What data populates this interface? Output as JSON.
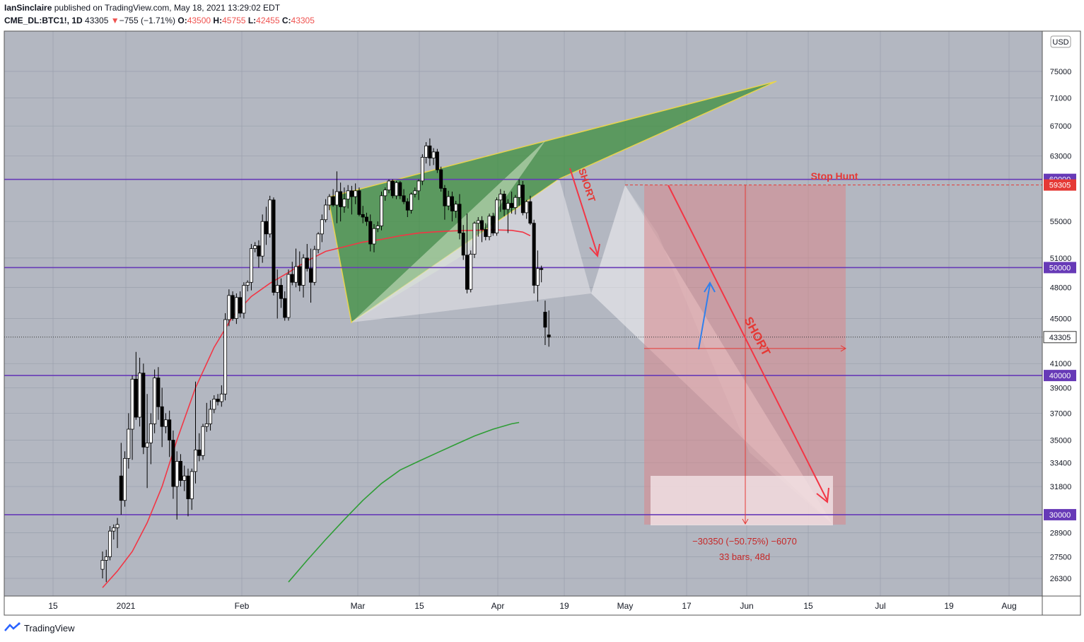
{
  "header": {
    "author": "IanSinclaire",
    "published_text": "published on TradingView.com, May 18, 2021 13:29:02 EDT",
    "symbol": "CME_DL:BTC1!, 1D",
    "last": "43305",
    "change_arrow": "▼",
    "change": "−755 (−1.71%)",
    "o_label": "O:",
    "o_value": "43500",
    "h_label": "H:",
    "h_value": "45755",
    "l_label": "L:",
    "l_value": "42455",
    "c_label": "C:",
    "c_value": "43305"
  },
  "footer": {
    "brand": "TradingView"
  },
  "colors": {
    "plot_bg": "#b3b7c1",
    "up": "#ffffff",
    "down": "#000000",
    "level_line": "#673ab7",
    "ma_fast": "#f23645",
    "ma_slow": "#2e9d35",
    "pattern_green": "#3e8f3e",
    "short_arrow": "#f23645",
    "range_box": "#d9888c",
    "projection_arrow": "#2f80ed"
  },
  "chart_data": {
    "type": "candlestick",
    "currency": "USD",
    "x_labels": [
      "15",
      "2021",
      "Feb",
      "Mar",
      "15",
      "Apr",
      "19",
      "May",
      "17",
      "Jun",
      "15",
      "Jul",
      "19",
      "Aug"
    ],
    "y_ticks": [
      "75000",
      "71000",
      "67000",
      "63000",
      "55000",
      "51000",
      "48000",
      "45000",
      "41000",
      "39000",
      "37000",
      "35000",
      "33400",
      "31800",
      "28900",
      "27500",
      "26300"
    ],
    "horizontal_levels": [
      {
        "value": 60000,
        "label": "60000"
      },
      {
        "value": 50000,
        "label": "50000"
      },
      {
        "value": 40000,
        "label": "40000"
      },
      {
        "value": 30000,
        "label": "30000"
      }
    ],
    "last_price": {
      "value": 43305,
      "label": "43305"
    },
    "stop_level": {
      "value": 59305,
      "label": "59305"
    },
    "annotations": {
      "stop_hunt": "Stop Hunt",
      "short_1": "SHORT",
      "short_2": "SHORT",
      "measure_1": "−30350 (−50.75%) −6070",
      "measure_2": "33 bars, 48d"
    },
    "candles": [
      {
        "o": 26800,
        "h": 27800,
        "l": 26300,
        "c": 27300
      },
      {
        "o": 27300,
        "h": 27900,
        "l": 26100,
        "c": 27500
      },
      {
        "o": 27500,
        "h": 29300,
        "l": 27300,
        "c": 29000
      },
      {
        "o": 29000,
        "h": 29400,
        "l": 28500,
        "c": 29200
      },
      {
        "o": 29200,
        "h": 29800,
        "l": 28000,
        "c": 29400
      },
      {
        "o": 32500,
        "h": 34800,
        "l": 30000,
        "c": 30900
      },
      {
        "o": 30900,
        "h": 34200,
        "l": 30500,
        "c": 33700
      },
      {
        "o": 33700,
        "h": 37000,
        "l": 33000,
        "c": 35800
      },
      {
        "o": 35800,
        "h": 40000,
        "l": 33600,
        "c": 39700
      },
      {
        "o": 39700,
        "h": 42000,
        "l": 36500,
        "c": 36700
      },
      {
        "o": 36700,
        "h": 41500,
        "l": 36000,
        "c": 40200
      },
      {
        "o": 40200,
        "h": 41000,
        "l": 34000,
        "c": 34500
      },
      {
        "o": 34500,
        "h": 38500,
        "l": 31700,
        "c": 34800
      },
      {
        "o": 34800,
        "h": 37000,
        "l": 33300,
        "c": 36200
      },
      {
        "o": 36200,
        "h": 40500,
        "l": 35500,
        "c": 39800
      },
      {
        "o": 39800,
        "h": 40700,
        "l": 36500,
        "c": 37500
      },
      {
        "o": 37500,
        "h": 39000,
        "l": 34500,
        "c": 36000
      },
      {
        "o": 36000,
        "h": 37000,
        "l": 35500,
        "c": 36500
      },
      {
        "o": 36500,
        "h": 37200,
        "l": 33800,
        "c": 35000
      },
      {
        "o": 35000,
        "h": 35700,
        "l": 31000,
        "c": 31800
      },
      {
        "o": 31800,
        "h": 34200,
        "l": 29700,
        "c": 33500
      },
      {
        "o": 33500,
        "h": 34000,
        "l": 31800,
        "c": 32200
      },
      {
        "o": 32200,
        "h": 33200,
        "l": 31500,
        "c": 32500
      },
      {
        "o": 32500,
        "h": 33000,
        "l": 29900,
        "c": 31000
      },
      {
        "o": 31000,
        "h": 33000,
        "l": 30300,
        "c": 32800
      },
      {
        "o": 32800,
        "h": 39500,
        "l": 32000,
        "c": 34300
      },
      {
        "o": 34300,
        "h": 35500,
        "l": 33500,
        "c": 33900
      },
      {
        "o": 33900,
        "h": 36200,
        "l": 33600,
        "c": 36000
      },
      {
        "o": 36000,
        "h": 37800,
        "l": 35600,
        "c": 36200
      },
      {
        "o": 36200,
        "h": 38000,
        "l": 35700,
        "c": 37300
      },
      {
        "o": 37300,
        "h": 38400,
        "l": 37000,
        "c": 38100
      },
      {
        "o": 38100,
        "h": 38500,
        "l": 37600,
        "c": 37900
      },
      {
        "o": 37900,
        "h": 39200,
        "l": 37500,
        "c": 38500
      },
      {
        "o": 38500,
        "h": 45500,
        "l": 38000,
        "c": 44900
      },
      {
        "o": 44900,
        "h": 47800,
        "l": 44300,
        "c": 47200
      },
      {
        "o": 47200,
        "h": 47600,
        "l": 44800,
        "c": 45000
      },
      {
        "o": 45000,
        "h": 47400,
        "l": 44500,
        "c": 47000
      },
      {
        "o": 47000,
        "h": 47600,
        "l": 45100,
        "c": 45500
      },
      {
        "o": 45500,
        "h": 48500,
        "l": 45000,
        "c": 48200
      },
      {
        "o": 48200,
        "h": 48700,
        "l": 47600,
        "c": 48500
      },
      {
        "o": 48500,
        "h": 52500,
        "l": 47700,
        "c": 52000
      },
      {
        "o": 52000,
        "h": 52700,
        "l": 51600,
        "c": 52300
      },
      {
        "o": 52300,
        "h": 52900,
        "l": 50000,
        "c": 51200
      },
      {
        "o": 51200,
        "h": 55800,
        "l": 50500,
        "c": 55000
      },
      {
        "o": 55000,
        "h": 56700,
        "l": 52400,
        "c": 53600
      },
      {
        "o": 53600,
        "h": 58000,
        "l": 53200,
        "c": 57500
      },
      {
        "o": 57500,
        "h": 57800,
        "l": 47200,
        "c": 47500
      },
      {
        "o": 47500,
        "h": 49800,
        "l": 45000,
        "c": 48200
      },
      {
        "o": 48200,
        "h": 48900,
        "l": 46000,
        "c": 46900
      },
      {
        "o": 46900,
        "h": 47600,
        "l": 44800,
        "c": 45100
      },
      {
        "o": 45100,
        "h": 49800,
        "l": 44800,
        "c": 49300
      },
      {
        "o": 49300,
        "h": 50600,
        "l": 48200,
        "c": 48500
      },
      {
        "o": 48500,
        "h": 52000,
        "l": 48000,
        "c": 50100
      },
      {
        "o": 50100,
        "h": 51700,
        "l": 47600,
        "c": 48200
      },
      {
        "o": 48200,
        "h": 51400,
        "l": 47000,
        "c": 51000
      },
      {
        "o": 51000,
        "h": 52500,
        "l": 49600,
        "c": 49900
      },
      {
        "o": 49900,
        "h": 52000,
        "l": 46500,
        "c": 48500
      },
      {
        "o": 48500,
        "h": 52300,
        "l": 48200,
        "c": 51900
      },
      {
        "o": 51900,
        "h": 53800,
        "l": 51500,
        "c": 53600
      },
      {
        "o": 53600,
        "h": 55800,
        "l": 52700,
        "c": 55200
      },
      {
        "o": 55200,
        "h": 57600,
        "l": 54900,
        "c": 56900
      },
      {
        "o": 56900,
        "h": 58200,
        "l": 56300,
        "c": 57900
      },
      {
        "o": 57900,
        "h": 58800,
        "l": 56700,
        "c": 56900
      },
      {
        "o": 56900,
        "h": 61000,
        "l": 54800,
        "c": 58500
      },
      {
        "o": 58500,
        "h": 59600,
        "l": 55000,
        "c": 56700
      },
      {
        "o": 56700,
        "h": 59000,
        "l": 56000,
        "c": 57600
      },
      {
        "o": 57600,
        "h": 59300,
        "l": 56500,
        "c": 58600
      },
      {
        "o": 58600,
        "h": 59200,
        "l": 55800,
        "c": 57900
      },
      {
        "o": 57900,
        "h": 59500,
        "l": 57000,
        "c": 58600
      },
      {
        "o": 58600,
        "h": 59000,
        "l": 55600,
        "c": 55800
      },
      {
        "o": 55800,
        "h": 56800,
        "l": 54800,
        "c": 55500
      },
      {
        "o": 55500,
        "h": 56000,
        "l": 54500,
        "c": 55000
      },
      {
        "o": 55000,
        "h": 55800,
        "l": 51700,
        "c": 52500
      },
      {
        "o": 52500,
        "h": 54700,
        "l": 51600,
        "c": 54200
      },
      {
        "o": 54200,
        "h": 55000,
        "l": 53800,
        "c": 54500
      },
      {
        "o": 54500,
        "h": 58500,
        "l": 54000,
        "c": 58000
      },
      {
        "o": 58000,
        "h": 59000,
        "l": 57400,
        "c": 58700
      },
      {
        "o": 58700,
        "h": 60000,
        "l": 58300,
        "c": 59800
      },
      {
        "o": 59800,
        "h": 60000,
        "l": 57700,
        "c": 58000
      },
      {
        "o": 58000,
        "h": 59800,
        "l": 57600,
        "c": 59600
      },
      {
        "o": 59600,
        "h": 59800,
        "l": 57600,
        "c": 58000
      },
      {
        "o": 58000,
        "h": 58800,
        "l": 57000,
        "c": 57300
      },
      {
        "o": 57300,
        "h": 57700,
        "l": 55500,
        "c": 56300
      },
      {
        "o": 56300,
        "h": 58400,
        "l": 55900,
        "c": 58200
      },
      {
        "o": 58200,
        "h": 59000,
        "l": 57800,
        "c": 58600
      },
      {
        "o": 58600,
        "h": 60000,
        "l": 57500,
        "c": 59800
      },
      {
        "o": 59800,
        "h": 63200,
        "l": 59300,
        "c": 62800
      },
      {
        "o": 62800,
        "h": 64800,
        "l": 62000,
        "c": 64300
      },
      {
        "o": 64300,
        "h": 65300,
        "l": 61700,
        "c": 62700
      },
      {
        "o": 62700,
        "h": 64000,
        "l": 61800,
        "c": 63500
      },
      {
        "o": 63500,
        "h": 63900,
        "l": 60800,
        "c": 61200
      },
      {
        "o": 61200,
        "h": 61600,
        "l": 58500,
        "c": 58900
      },
      {
        "o": 58900,
        "h": 59300,
        "l": 55200,
        "c": 56800
      },
      {
        "o": 56800,
        "h": 58600,
        "l": 56300,
        "c": 57900
      },
      {
        "o": 57900,
        "h": 58500,
        "l": 55000,
        "c": 56200
      },
      {
        "o": 56200,
        "h": 57400,
        "l": 55400,
        "c": 57000
      },
      {
        "o": 57000,
        "h": 58200,
        "l": 53000,
        "c": 53700
      },
      {
        "o": 53700,
        "h": 54600,
        "l": 50800,
        "c": 51300
      },
      {
        "o": 51300,
        "h": 55900,
        "l": 47400,
        "c": 47800
      },
      {
        "o": 47800,
        "h": 51800,
        "l": 47500,
        "c": 51400
      },
      {
        "o": 51400,
        "h": 55000,
        "l": 51000,
        "c": 54800
      },
      {
        "o": 54800,
        "h": 55500,
        "l": 53300,
        "c": 55100
      },
      {
        "o": 55100,
        "h": 55600,
        "l": 52700,
        "c": 54100
      },
      {
        "o": 54100,
        "h": 54800,
        "l": 52900,
        "c": 53300
      },
      {
        "o": 53300,
        "h": 55900,
        "l": 52900,
        "c": 55600
      },
      {
        "o": 55600,
        "h": 56000,
        "l": 53400,
        "c": 53700
      },
      {
        "o": 53700,
        "h": 57800,
        "l": 53400,
        "c": 57500
      },
      {
        "o": 57500,
        "h": 58800,
        "l": 56100,
        "c": 58200
      },
      {
        "o": 58200,
        "h": 58600,
        "l": 55600,
        "c": 56400
      },
      {
        "o": 56400,
        "h": 57600,
        "l": 53700,
        "c": 57100
      },
      {
        "o": 57100,
        "h": 58500,
        "l": 55900,
        "c": 56600
      },
      {
        "o": 56600,
        "h": 58100,
        "l": 55800,
        "c": 57800
      },
      {
        "o": 57800,
        "h": 60000,
        "l": 56800,
        "c": 59300
      },
      {
        "o": 59300,
        "h": 59800,
        "l": 55700,
        "c": 56000
      },
      {
        "o": 56000,
        "h": 57500,
        "l": 55300,
        "c": 57300
      },
      {
        "o": 57300,
        "h": 58000,
        "l": 54600,
        "c": 54800
      },
      {
        "o": 54800,
        "h": 55200,
        "l": 47400,
        "c": 48200
      },
      {
        "o": 48200,
        "h": 51800,
        "l": 46600,
        "c": 49900
      },
      {
        "o": 49900,
        "h": 50200,
        "l": 48500,
        "c": 49800
      },
      {
        "o": 45600,
        "h": 46700,
        "l": 42600,
        "c": 44200
      },
      {
        "o": 43500,
        "h": 45755,
        "l": 42455,
        "c": 43305
      }
    ],
    "ma_fast": [
      [
        0,
        25800
      ],
      [
        4,
        26700
      ],
      [
        8,
        27800
      ],
      [
        12,
        29500
      ],
      [
        16,
        31800
      ],
      [
        20,
        35000
      ],
      [
        25,
        39000
      ],
      [
        30,
        42400
      ],
      [
        35,
        45200
      ],
      [
        40,
        47100
      ],
      [
        45,
        48400
      ],
      [
        50,
        49500
      ],
      [
        55,
        50700
      ],
      [
        60,
        51700
      ],
      [
        65,
        52200
      ],
      [
        70,
        52700
      ],
      [
        75,
        53000
      ],
      [
        80,
        53400
      ],
      [
        85,
        53700
      ],
      [
        90,
        53850
      ],
      [
        95,
        53950
      ],
      [
        100,
        54000
      ],
      [
        105,
        54050
      ],
      [
        110,
        54000
      ],
      [
        113,
        53800
      ],
      [
        115,
        53400
      ]
    ],
    "ma_slow": [
      [
        50,
        26100
      ],
      [
        55,
        27300
      ],
      [
        60,
        28500
      ],
      [
        65,
        29700
      ],
      [
        70,
        30900
      ],
      [
        75,
        32000
      ],
      [
        80,
        32900
      ],
      [
        85,
        33500
      ],
      [
        90,
        34100
      ],
      [
        95,
        34700
      ],
      [
        100,
        35300
      ],
      [
        105,
        35800
      ],
      [
        110,
        36200
      ],
      [
        112,
        36300
      ]
    ]
  }
}
